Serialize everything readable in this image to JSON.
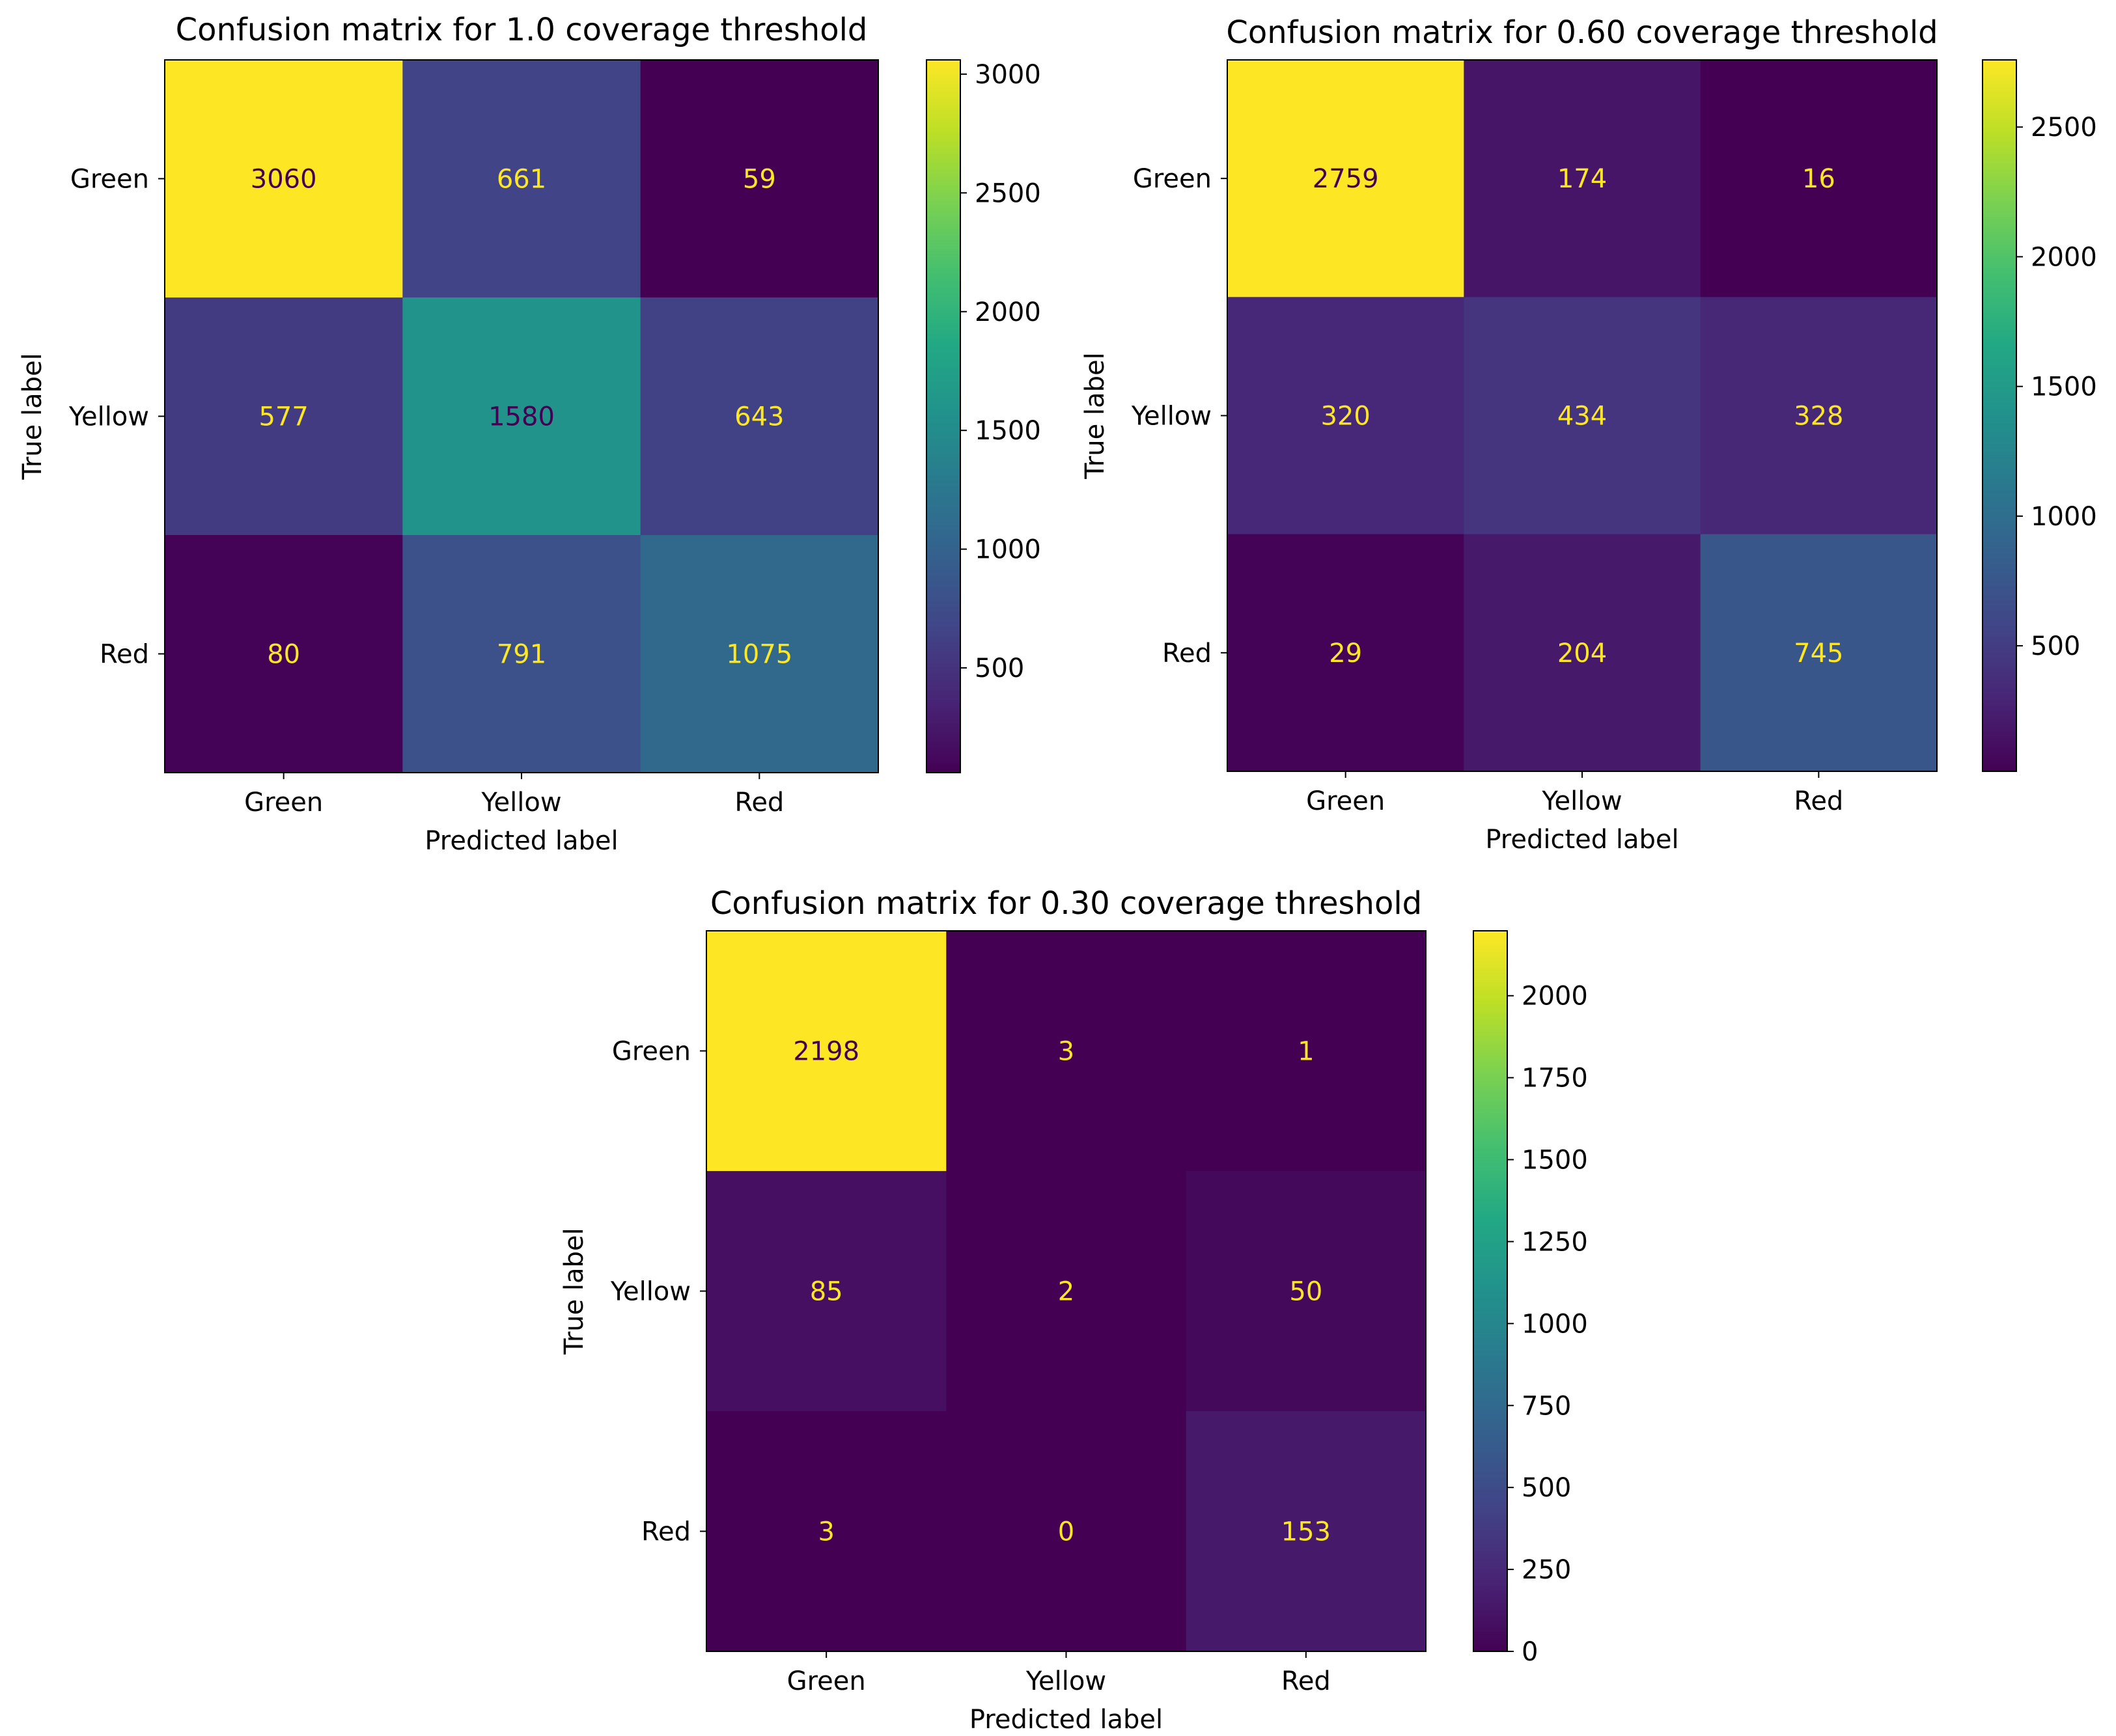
{
  "chart_data": [
    {
      "type": "heatmap",
      "title": "Confusion matrix for 1.0 coverage threshold",
      "xlabel": "Predicted label",
      "ylabel": "True label",
      "x_categories": [
        "Green",
        "Yellow",
        "Red"
      ],
      "y_categories": [
        "Green",
        "Yellow",
        "Red"
      ],
      "values": [
        [
          3060,
          661,
          59
        ],
        [
          577,
          1580,
          643
        ],
        [
          80,
          791,
          1075
        ]
      ],
      "value_labels": [
        [
          "3060",
          "661",
          "59"
        ],
        [
          "577",
          "1580",
          "643"
        ],
        [
          "80",
          "791",
          "1075"
        ]
      ],
      "colorbar": {
        "min": 59,
        "max": 3060,
        "ticks": [
          "500",
          "1000",
          "1500",
          "2000",
          "2500",
          "3000"
        ],
        "tick_values": [
          500,
          1000,
          1500,
          2000,
          2500,
          3000
        ]
      },
      "colormap": "viridis"
    },
    {
      "type": "heatmap",
      "title": "Confusion matrix for 0.60 coverage threshold",
      "xlabel": "Predicted label",
      "ylabel": "True label",
      "x_categories": [
        "Green",
        "Yellow",
        "Red"
      ],
      "y_categories": [
        "Green",
        "Yellow",
        "Red"
      ],
      "values": [
        [
          2759,
          174,
          16
        ],
        [
          320,
          434,
          328
        ],
        [
          29,
          204,
          745
        ]
      ],
      "value_labels": [
        [
          "2759",
          "174",
          "16"
        ],
        [
          "320",
          "434",
          "328"
        ],
        [
          "29",
          "204",
          "745"
        ]
      ],
      "colorbar": {
        "min": 16,
        "max": 2759,
        "ticks": [
          "500",
          "1000",
          "1500",
          "2000",
          "2500"
        ],
        "tick_values": [
          500,
          1000,
          1500,
          2000,
          2500
        ]
      },
      "colormap": "viridis"
    },
    {
      "type": "heatmap",
      "title": "Confusion matrix for 0.30 coverage threshold",
      "xlabel": "Predicted label",
      "ylabel": "True label",
      "x_categories": [
        "Green",
        "Yellow",
        "Red"
      ],
      "y_categories": [
        "Green",
        "Yellow",
        "Red"
      ],
      "values": [
        [
          2198,
          3,
          1
        ],
        [
          85,
          2,
          50
        ],
        [
          3,
          0,
          153
        ]
      ],
      "value_labels": [
        [
          "2198",
          "3",
          "1"
        ],
        [
          "85",
          "2",
          "50"
        ],
        [
          "3",
          "0",
          "153"
        ]
      ],
      "colorbar": {
        "min": 0,
        "max": 2198,
        "ticks": [
          "0",
          "250",
          "500",
          "750",
          "1000",
          "1250",
          "1500",
          "1750",
          "2000"
        ],
        "tick_values": [
          0,
          250,
          500,
          750,
          1000,
          1250,
          1500,
          1750,
          2000
        ]
      },
      "colormap": "viridis"
    }
  ]
}
